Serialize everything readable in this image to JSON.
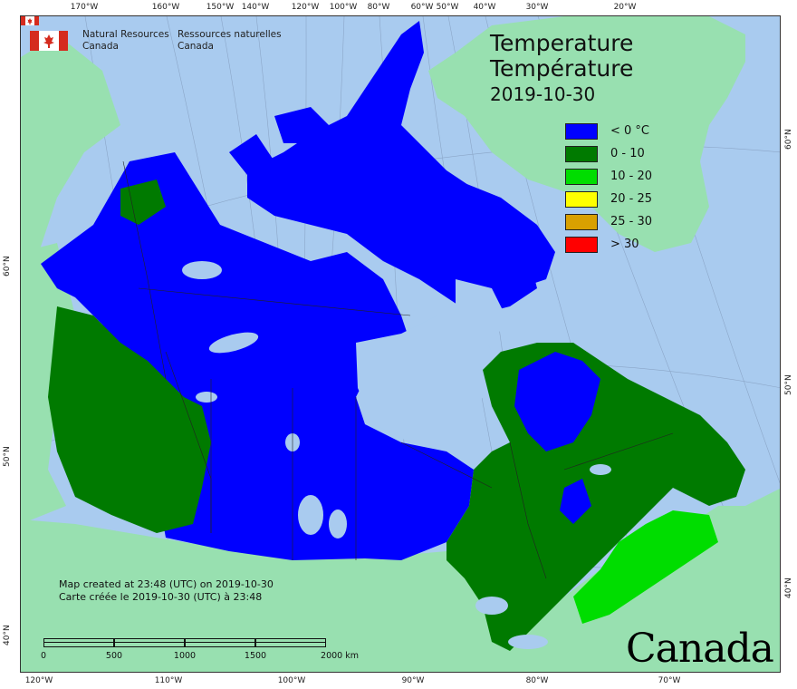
{
  "organization": {
    "name_en_line1": "Natural Resources",
    "name_en_line2": "Canada",
    "name_fr_line1": "Ressources naturelles",
    "name_fr_line2": "Canada",
    "flag_icon": "canada-flag-icon"
  },
  "title": {
    "english": "Temperature",
    "french": "Température",
    "date": "2019-10-30"
  },
  "legend": [
    {
      "label": "< 0 °C",
      "color": "#0000ff"
    },
    {
      "label": "0 - 10",
      "color": "#007a00"
    },
    {
      "label": "10 - 20",
      "color": "#00dd00"
    },
    {
      "label": "20 - 25",
      "color": "#ffff00"
    },
    {
      "label": "25 - 30",
      "color": "#d9a000"
    },
    {
      "label": "> 30",
      "color": "#ff0000"
    }
  ],
  "credits": {
    "line1": "Map created at 23:48 (UTC) on 2019-10-30",
    "line2": "Carte créée le 2019-10-30 (UTC) à 23:48"
  },
  "scale": {
    "labels": [
      "0",
      "500",
      "1000",
      "1500",
      "2000  km"
    ]
  },
  "wordmark": "Canada",
  "graticule": {
    "top": [
      "170°W",
      "160°W",
      "150°W",
      "140°W",
      "120°W",
      "100°W",
      "80°W",
      "60°W",
      "50°W",
      "40°W",
      "30°W",
      "20°W"
    ],
    "bottom": [
      "120°W",
      "110°W",
      "100°W",
      "90°W",
      "80°W",
      "70°W"
    ],
    "left": [
      "60°N",
      "50°N",
      "40°N"
    ],
    "right": [
      "60°N",
      "50°N",
      "40°N"
    ]
  },
  "colors": {
    "ocean": "#a9cbef",
    "land_outside": "#98e0b0",
    "cold": "#0000ff",
    "mild": "#007a00",
    "warm": "#00dd00",
    "lakes": "#a9cbef"
  }
}
